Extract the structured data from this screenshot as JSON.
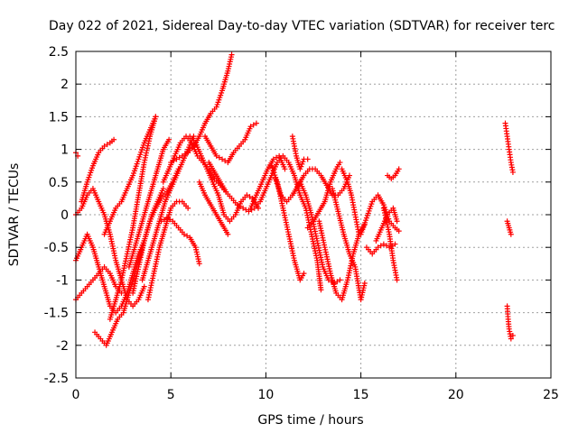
{
  "chart_data": {
    "type": "scatter",
    "title": "Day 022 of 2021, Sidereal Day-to-day VTEC variation (SDTVAR) for receiver terc",
    "xlabel": "GPS time / hours",
    "ylabel": "SDTVAR / TECUs",
    "xlim": [
      0,
      25
    ],
    "ylim": [
      -2.5,
      2.5
    ],
    "x_ticks": [
      "0",
      "5",
      "10",
      "15",
      "20",
      "25"
    ],
    "y_ticks": [
      "2.5",
      "2",
      "1.5",
      "1",
      "0.5",
      "0",
      "-0.5",
      "-1",
      "-1.5",
      "-2",
      "-2.5"
    ],
    "grid": true,
    "marker": "+",
    "series_color": "#ff0000",
    "tracks": [
      [
        [
          0.0,
          0.95
        ],
        [
          0.1,
          0.9
        ]
      ],
      [
        [
          0.0,
          0.0
        ],
        [
          0.3,
          0.1
        ],
        [
          0.6,
          0.3
        ],
        [
          0.9,
          0.4
        ],
        [
          1.2,
          0.2
        ],
        [
          1.5,
          0.0
        ],
        [
          1.8,
          -0.3
        ],
        [
          2.1,
          -0.7
        ],
        [
          2.4,
          -1.0
        ],
        [
          2.7,
          -1.3
        ],
        [
          3.0,
          -1.4
        ],
        [
          3.3,
          -1.3
        ],
        [
          3.6,
          -1.1
        ]
      ],
      [
        [
          0.0,
          -0.7
        ],
        [
          0.3,
          -0.5
        ],
        [
          0.6,
          -0.3
        ],
        [
          0.9,
          -0.5
        ],
        [
          1.2,
          -0.8
        ],
        [
          1.5,
          -1.1
        ],
        [
          1.8,
          -1.4
        ],
        [
          2.1,
          -1.5
        ],
        [
          2.4,
          -1.4
        ],
        [
          2.7,
          -1.2
        ],
        [
          3.0,
          -0.9
        ],
        [
          3.3,
          -0.6
        ],
        [
          3.6,
          -0.4
        ]
      ],
      [
        [
          0.0,
          -1.3
        ],
        [
          0.3,
          -1.2
        ],
        [
          0.6,
          -1.1
        ],
        [
          0.9,
          -1.0
        ],
        [
          1.2,
          -0.9
        ],
        [
          1.5,
          -0.8
        ],
        [
          1.8,
          -0.9
        ],
        [
          2.1,
          -1.1
        ],
        [
          2.4,
          -1.2
        ]
      ],
      [
        [
          1.0,
          -1.8
        ],
        [
          1.3,
          -1.9
        ],
        [
          1.6,
          -2.0
        ],
        [
          1.9,
          -1.8
        ],
        [
          2.2,
          -1.6
        ],
        [
          2.5,
          -1.5
        ],
        [
          2.8,
          -1.2
        ],
        [
          3.1,
          -0.9
        ],
        [
          3.4,
          -0.6
        ],
        [
          3.7,
          -0.3
        ],
        [
          4.0,
          0.0
        ],
        [
          4.3,
          0.2
        ],
        [
          4.6,
          0.4
        ]
      ],
      [
        [
          0.3,
          0.2
        ],
        [
          0.6,
          0.5
        ],
        [
          0.9,
          0.75
        ],
        [
          1.2,
          0.95
        ],
        [
          1.5,
          1.05
        ],
        [
          1.8,
          1.1
        ],
        [
          2.0,
          1.15
        ]
      ],
      [
        [
          1.8,
          -1.6
        ],
        [
          2.1,
          -1.3
        ],
        [
          2.4,
          -1.0
        ],
        [
          2.7,
          -0.6
        ],
        [
          3.0,
          -0.2
        ],
        [
          3.3,
          0.3
        ],
        [
          3.6,
          0.8
        ],
        [
          3.9,
          1.2
        ],
        [
          4.2,
          1.5
        ]
      ],
      [
        [
          1.5,
          -0.3
        ],
        [
          1.8,
          -0.1
        ],
        [
          2.1,
          0.1
        ],
        [
          2.4,
          0.2
        ],
        [
          2.7,
          0.4
        ],
        [
          3.0,
          0.6
        ],
        [
          3.3,
          0.85
        ],
        [
          3.6,
          1.1
        ],
        [
          3.9,
          1.3
        ],
        [
          4.2,
          1.5
        ]
      ],
      [
        [
          3.0,
          -1.2
        ],
        [
          3.3,
          -0.8
        ],
        [
          3.6,
          -0.4
        ],
        [
          3.9,
          -0.1
        ],
        [
          4.2,
          0.1
        ],
        [
          4.5,
          0.25
        ],
        [
          4.8,
          0.35
        ],
        [
          5.1,
          0.5
        ],
        [
          5.4,
          0.7
        ]
      ],
      [
        [
          2.8,
          -0.8
        ],
        [
          3.1,
          -0.5
        ],
        [
          3.4,
          -0.2
        ],
        [
          3.7,
          0.1
        ],
        [
          4.0,
          0.4
        ],
        [
          4.3,
          0.7
        ],
        [
          4.6,
          1.0
        ],
        [
          4.9,
          1.15
        ]
      ],
      [
        [
          3.5,
          -1.0
        ],
        [
          3.8,
          -0.7
        ],
        [
          4.1,
          -0.4
        ],
        [
          4.4,
          -0.1
        ],
        [
          4.7,
          0.2
        ],
        [
          5.0,
          0.4
        ],
        [
          5.3,
          0.6
        ],
        [
          5.6,
          0.8
        ],
        [
          5.9,
          1.0
        ],
        [
          6.2,
          1.2
        ]
      ],
      [
        [
          3.8,
          -1.3
        ],
        [
          4.1,
          -0.9
        ],
        [
          4.4,
          -0.5
        ],
        [
          4.7,
          -0.2
        ],
        [
          5.0,
          0.1
        ],
        [
          5.3,
          0.2
        ],
        [
          5.6,
          0.2
        ],
        [
          5.9,
          0.1
        ]
      ],
      [
        [
          4.5,
          -0.1
        ],
        [
          4.8,
          -0.05
        ],
        [
          5.1,
          -0.1
        ],
        [
          5.4,
          -0.2
        ],
        [
          5.7,
          -0.3
        ],
        [
          6.0,
          -0.35
        ],
        [
          6.3,
          -0.5
        ],
        [
          6.5,
          -0.75
        ]
      ],
      [
        [
          4.6,
          0.5
        ],
        [
          4.9,
          0.7
        ],
        [
          5.2,
          0.9
        ],
        [
          5.5,
          1.1
        ],
        [
          5.8,
          1.2
        ],
        [
          6.1,
          1.1
        ],
        [
          6.4,
          0.9
        ],
        [
          6.7,
          0.8
        ],
        [
          7.0,
          0.7
        ],
        [
          7.3,
          0.55
        ],
        [
          7.6,
          0.45
        ],
        [
          7.9,
          0.35
        ]
      ],
      [
        [
          5.0,
          0.8
        ],
        [
          5.3,
          0.85
        ],
        [
          5.6,
          0.9
        ],
        [
          5.9,
          0.95
        ],
        [
          6.2,
          1.05
        ],
        [
          6.5,
          1.2
        ],
        [
          6.8,
          1.4
        ],
        [
          7.1,
          1.55
        ],
        [
          7.4,
          1.65
        ],
        [
          7.7,
          1.9
        ],
        [
          8.0,
          2.2
        ],
        [
          8.2,
          2.45
        ]
      ],
      [
        [
          6.0,
          1.2
        ],
        [
          6.3,
          1.1
        ],
        [
          6.6,
          0.9
        ],
        [
          6.9,
          0.7
        ],
        [
          7.2,
          0.5
        ],
        [
          7.5,
          0.3
        ],
        [
          7.8,
          0.0
        ],
        [
          8.1,
          -0.1
        ],
        [
          8.4,
          0.0
        ],
        [
          8.7,
          0.2
        ],
        [
          9.0,
          0.3
        ],
        [
          9.3,
          0.25
        ],
        [
          9.6,
          0.1
        ]
      ],
      [
        [
          6.5,
          0.5
        ],
        [
          6.8,
          0.3
        ],
        [
          7.1,
          0.15
        ],
        [
          7.4,
          0.0
        ],
        [
          7.7,
          -0.15
        ],
        [
          8.0,
          -0.3
        ]
      ],
      [
        [
          6.8,
          1.2
        ],
        [
          7.1,
          1.05
        ],
        [
          7.4,
          0.9
        ],
        [
          7.7,
          0.85
        ],
        [
          8.0,
          0.8
        ],
        [
          8.3,
          0.95
        ],
        [
          8.6,
          1.05
        ],
        [
          8.9,
          1.15
        ],
        [
          9.2,
          1.35
        ],
        [
          9.5,
          1.4
        ]
      ],
      [
        [
          7.0,
          0.8
        ],
        [
          7.3,
          0.65
        ],
        [
          7.6,
          0.5
        ],
        [
          7.9,
          0.35
        ],
        [
          8.2,
          0.25
        ],
        [
          8.5,
          0.15
        ],
        [
          8.8,
          0.1
        ],
        [
          9.1,
          0.05
        ],
        [
          9.4,
          0.1
        ],
        [
          9.7,
          0.2
        ],
        [
          10.0,
          0.4
        ],
        [
          10.3,
          0.6
        ],
        [
          10.6,
          0.8
        ],
        [
          10.9,
          0.9
        ],
        [
          11.2,
          0.8
        ],
        [
          11.5,
          0.6
        ],
        [
          11.8,
          0.3
        ],
        [
          12.1,
          0.1
        ],
        [
          12.4,
          -0.3
        ],
        [
          12.7,
          -0.7
        ],
        [
          12.9,
          -1.15
        ]
      ],
      [
        [
          9.2,
          0.1
        ],
        [
          9.5,
          0.3
        ],
        [
          9.8,
          0.5
        ],
        [
          10.1,
          0.7
        ],
        [
          10.4,
          0.85
        ],
        [
          10.7,
          0.9
        ],
        [
          11.0,
          0.7
        ]
      ],
      [
        [
          10.3,
          0.75
        ],
        [
          10.6,
          0.5
        ],
        [
          10.9,
          0.1
        ],
        [
          11.2,
          -0.3
        ],
        [
          11.5,
          -0.7
        ],
        [
          11.8,
          -1.0
        ],
        [
          12.0,
          -0.9
        ]
      ],
      [
        [
          10.5,
          0.55
        ],
        [
          10.8,
          0.3
        ],
        [
          11.1,
          0.2
        ],
        [
          11.4,
          0.3
        ],
        [
          11.7,
          0.45
        ],
        [
          12.0,
          0.6
        ],
        [
          12.3,
          0.7
        ],
        [
          12.6,
          0.7
        ],
        [
          12.9,
          0.6
        ],
        [
          13.2,
          0.45
        ],
        [
          13.5,
          0.3
        ],
        [
          13.8,
          0.3
        ],
        [
          14.1,
          0.4
        ],
        [
          14.4,
          0.6
        ]
      ],
      [
        [
          11.4,
          1.2
        ],
        [
          11.6,
          0.9
        ],
        [
          11.8,
          0.7
        ],
        [
          12.0,
          0.85
        ],
        [
          12.2,
          0.85
        ]
      ],
      [
        [
          11.8,
          0.5
        ],
        [
          12.1,
          0.3
        ],
        [
          12.4,
          0.0
        ],
        [
          12.7,
          -0.4
        ],
        [
          13.0,
          -0.8
        ],
        [
          13.3,
          -1.0
        ],
        [
          13.6,
          -1.05
        ],
        [
          13.9,
          -1.0
        ]
      ],
      [
        [
          12.2,
          -0.2
        ],
        [
          12.5,
          -0.1
        ],
        [
          12.8,
          0.05
        ],
        [
          13.1,
          0.2
        ],
        [
          13.4,
          0.5
        ],
        [
          13.7,
          0.7
        ],
        [
          13.9,
          0.8
        ]
      ],
      [
        [
          12.8,
          -0.1
        ],
        [
          13.1,
          -0.5
        ],
        [
          13.4,
          -0.9
        ],
        [
          13.7,
          -1.2
        ],
        [
          14.0,
          -1.3
        ],
        [
          14.3,
          -1.0
        ],
        [
          14.6,
          -0.6
        ],
        [
          14.9,
          -0.3
        ],
        [
          15.2,
          -0.15
        ]
      ],
      [
        [
          13.5,
          0.4
        ],
        [
          13.8,
          0.05
        ],
        [
          14.1,
          -0.3
        ],
        [
          14.4,
          -0.6
        ],
        [
          14.7,
          -0.8
        ],
        [
          15.0,
          -1.3
        ],
        [
          15.2,
          -1.05
        ]
      ],
      [
        [
          14.0,
          0.7
        ],
        [
          14.3,
          0.5
        ],
        [
          14.5,
          0.3
        ],
        [
          14.7,
          0.0
        ],
        [
          14.9,
          -0.3
        ]
      ],
      [
        [
          15.0,
          -0.3
        ],
        [
          15.3,
          -0.05
        ],
        [
          15.6,
          0.2
        ],
        [
          15.9,
          0.3
        ],
        [
          16.2,
          0.15
        ],
        [
          16.5,
          -0.1
        ],
        [
          16.8,
          -0.2
        ],
        [
          17.0,
          -0.25
        ]
      ],
      [
        [
          15.3,
          -0.5
        ],
        [
          15.6,
          -0.6
        ],
        [
          15.9,
          -0.5
        ],
        [
          16.2,
          -0.45
        ],
        [
          16.5,
          -0.5
        ],
        [
          16.8,
          -0.45
        ]
      ],
      [
        [
          15.8,
          -0.4
        ],
        [
          16.1,
          -0.2
        ],
        [
          16.4,
          0.0
        ],
        [
          16.7,
          0.1
        ],
        [
          16.9,
          -0.1
        ]
      ],
      [
        [
          16.2,
          0.1
        ],
        [
          16.5,
          -0.3
        ],
        [
          16.7,
          -0.7
        ],
        [
          16.9,
          -1.0
        ]
      ],
      [
        [
          16.4,
          0.6
        ],
        [
          16.6,
          0.55
        ],
        [
          16.8,
          0.6
        ],
        [
          17.0,
          0.7
        ]
      ],
      [
        [
          22.6,
          1.4
        ],
        [
          22.7,
          1.2
        ],
        [
          22.8,
          1.0
        ],
        [
          22.9,
          0.8
        ],
        [
          23.0,
          0.65
        ]
      ],
      [
        [
          22.7,
          -0.1
        ],
        [
          22.8,
          -0.2
        ],
        [
          22.9,
          -0.3
        ]
      ],
      [
        [
          22.7,
          -1.4
        ],
        [
          22.75,
          -1.6
        ],
        [
          22.8,
          -1.75
        ],
        [
          22.9,
          -1.9
        ],
        [
          23.0,
          -1.85
        ]
      ]
    ]
  }
}
